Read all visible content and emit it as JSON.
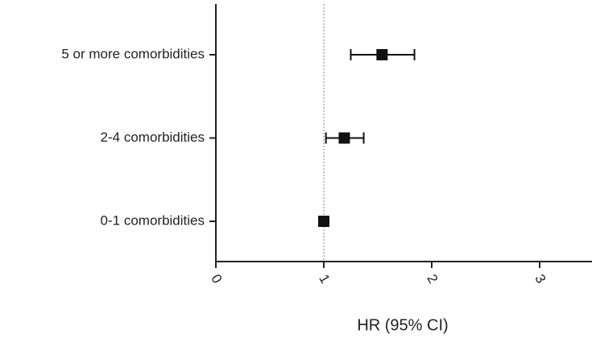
{
  "chart_data": {
    "type": "forest",
    "x_label": "HR (95%  CI)",
    "categories": [
      "5 or more comorbidities",
      "2-4 comorbidities",
      "0-1 comorbidities"
    ],
    "series": [
      {
        "values": [
          1.54,
          1.19,
          1.0
        ],
        "lower": [
          1.25,
          1.02,
          1.0
        ],
        "upper": [
          1.84,
          1.37,
          1.0
        ],
        "color": "#111111"
      }
    ],
    "xlim": [
      0,
      3.5
    ],
    "xticks": [
      0,
      1,
      2,
      3
    ],
    "reference_line": 1
  }
}
